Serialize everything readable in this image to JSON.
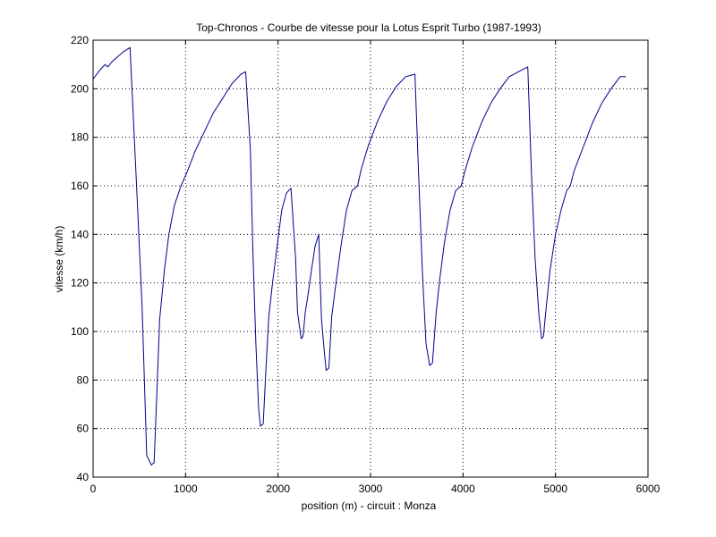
{
  "colors": {
    "background": "#ffffff",
    "axes": "#000000",
    "grid": "#000000",
    "line": "#00008b"
  },
  "chart_data": {
    "type": "line",
    "title": "Top-Chronos - Courbe de vitesse pour la Lotus Esprit Turbo (1987-1993)",
    "xlabel": "position (m) - circuit : Monza",
    "ylabel": "vitesse (km/h)",
    "xlim": [
      0,
      6000
    ],
    "ylim": [
      40,
      220
    ],
    "xticks": [
      0,
      1000,
      2000,
      3000,
      4000,
      5000,
      6000
    ],
    "yticks": [
      40,
      60,
      80,
      100,
      120,
      140,
      160,
      180,
      200,
      220
    ],
    "xtick_labels": [
      "0",
      "1000",
      "2000",
      "3000",
      "4000",
      "5000",
      "6000"
    ],
    "ytick_labels": [
      "40",
      "60",
      "80",
      "100",
      "120",
      "140",
      "160",
      "180",
      "200",
      "220"
    ],
    "grid": true,
    "series": [
      {
        "x": [
          0,
          80,
          130,
          160,
          200,
          260,
          320,
          400,
          470,
          530,
          580,
          630,
          660,
          690,
          720,
          770,
          820,
          880,
          950,
          1020,
          1100,
          1200,
          1300,
          1400,
          1500,
          1600,
          1650,
          1700,
          1730,
          1760,
          1790,
          1810,
          1840,
          1870,
          1900,
          1940,
          1990,
          2040,
          2090,
          2140,
          2190,
          2210,
          2250,
          2270,
          2295,
          2320,
          2360,
          2400,
          2440,
          2470,
          2500,
          2520,
          2550,
          2580,
          2620,
          2680,
          2740,
          2800,
          2860,
          2900,
          2980,
          3080,
          3180,
          3280,
          3380,
          3480,
          3520,
          3560,
          3600,
          3640,
          3670,
          3710,
          3750,
          3800,
          3860,
          3920,
          3980,
          4020,
          4100,
          4200,
          4300,
          4400,
          4500,
          4600,
          4700,
          4740,
          4780,
          4820,
          4850,
          4870,
          4900,
          4940,
          5000,
          5060,
          5120,
          5160,
          5200,
          5300,
          5400,
          5500,
          5600,
          5700,
          5760
        ],
        "y": [
          204,
          208,
          210,
          209,
          211,
          213,
          215,
          217,
          160,
          110,
          49,
          45,
          46,
          75,
          105,
          125,
          140,
          152,
          160,
          166,
          174,
          182,
          190,
          196,
          202,
          206,
          207,
          175,
          130,
          95,
          68,
          61,
          62,
          85,
          106,
          120,
          135,
          150,
          157,
          159,
          130,
          108,
          97,
          98,
          108,
          114,
          125,
          135,
          140,
          105,
          92,
          84,
          85,
          106,
          118,
          135,
          150,
          158,
          160,
          167,
          177,
          187,
          195,
          201,
          205,
          206,
          165,
          125,
          95,
          86,
          87,
          108,
          122,
          137,
          150,
          158,
          160,
          166,
          176,
          186,
          194,
          200,
          205,
          207,
          209,
          165,
          130,
          107,
          97,
          98,
          110,
          125,
          140,
          150,
          158,
          160,
          166,
          176,
          186,
          194,
          200,
          205,
          205
        ]
      }
    ]
  }
}
